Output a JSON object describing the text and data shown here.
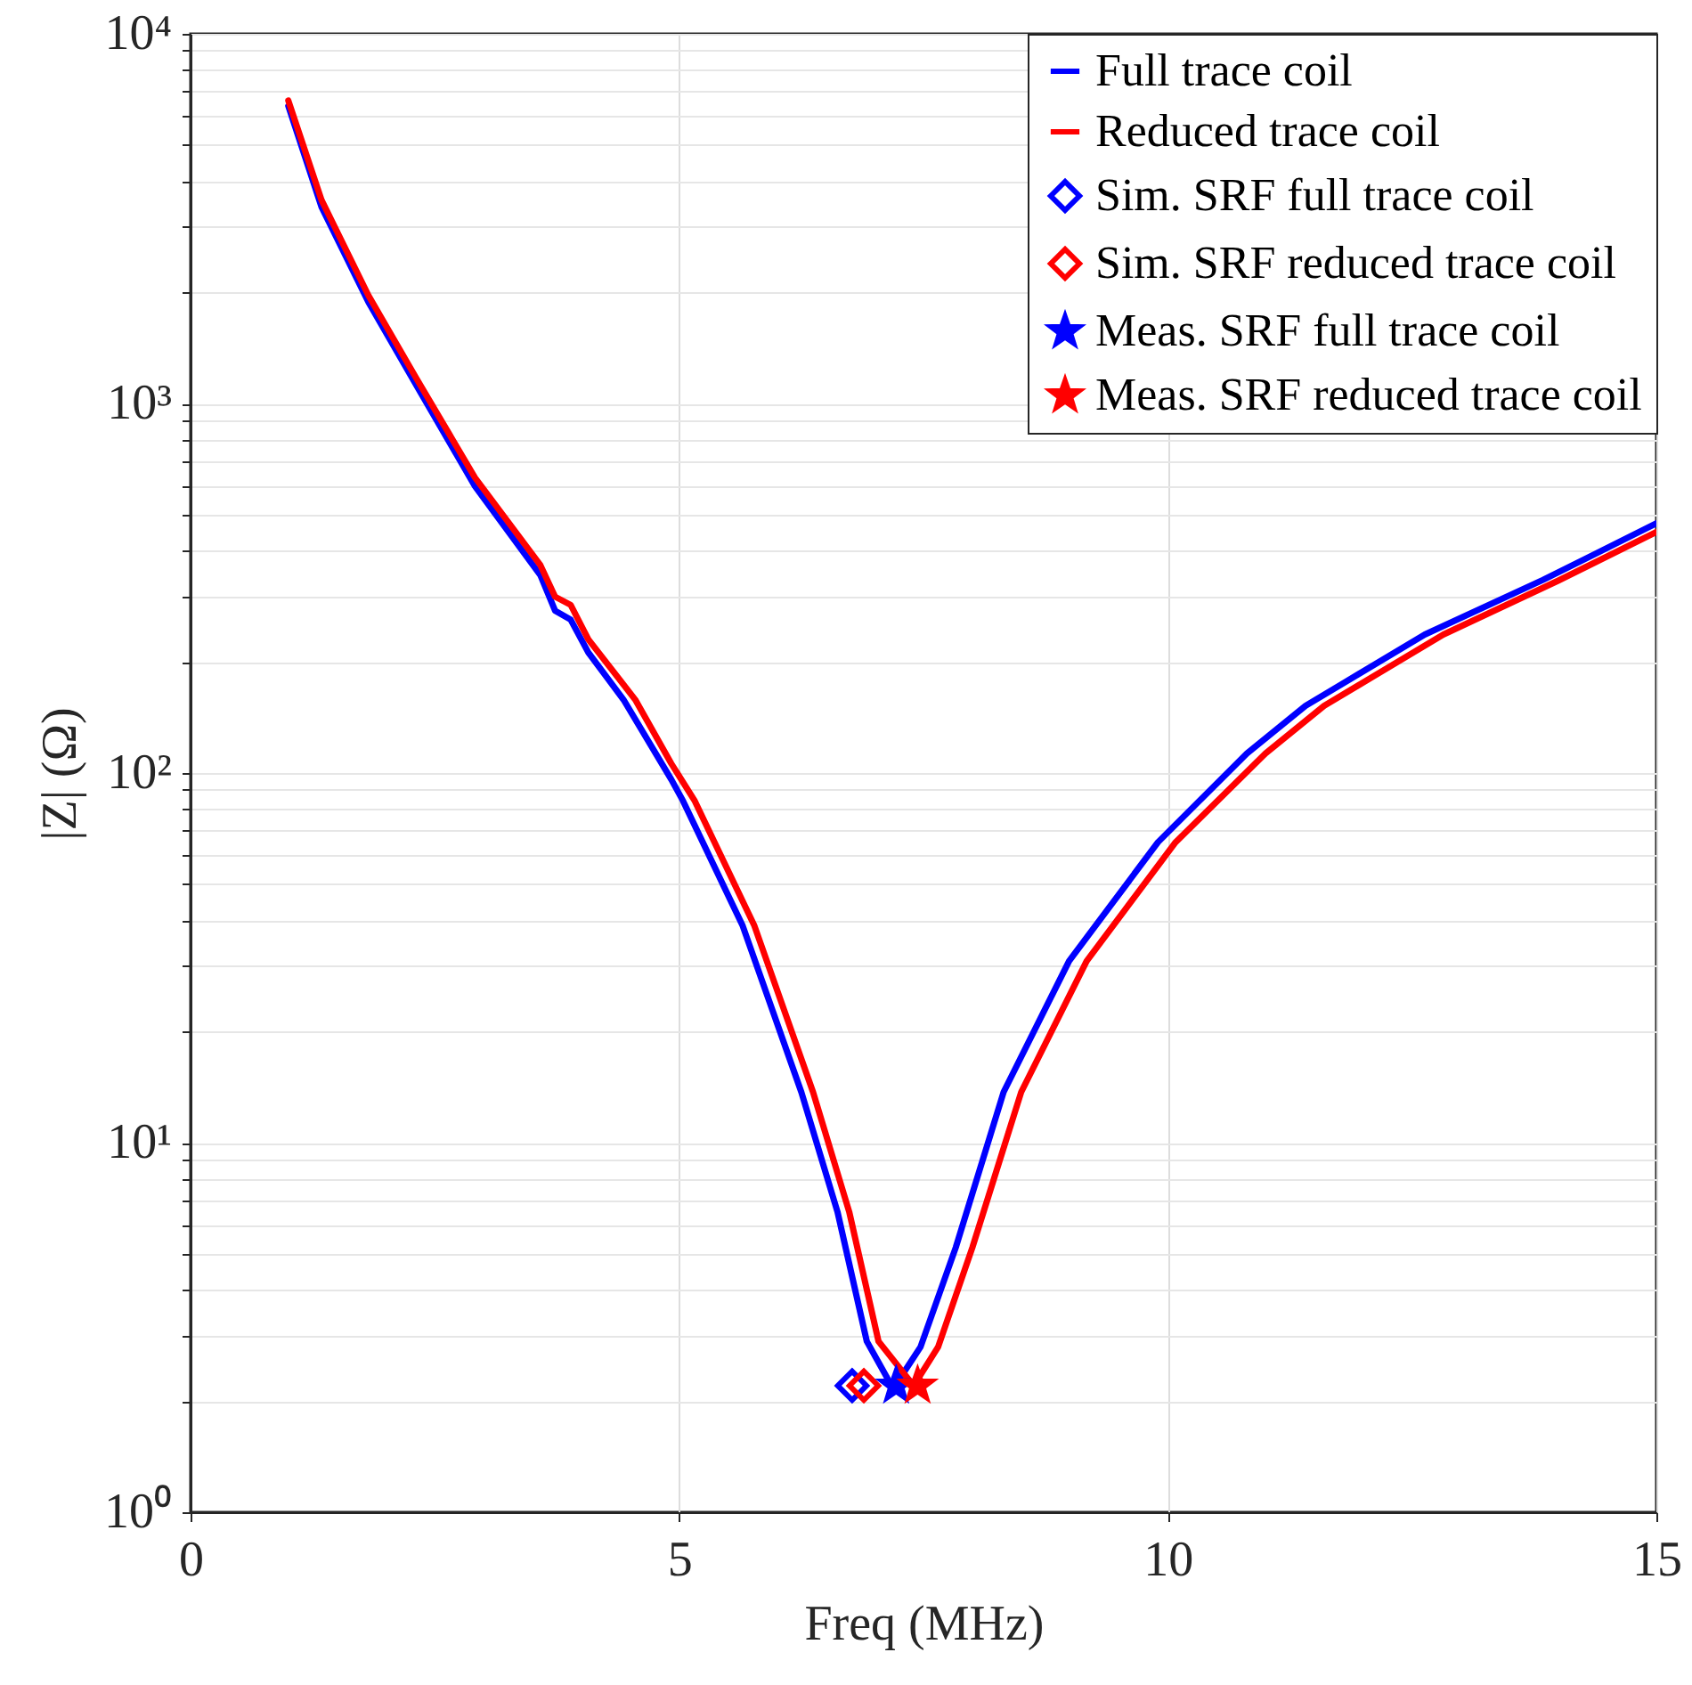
{
  "chart_data": {
    "type": "line",
    "xlabel": "Freq (MHz)",
    "ylabel": "|Z| (Ω)",
    "log": "y",
    "grid": true,
    "legend": "top right",
    "xlim": [
      0,
      15
    ],
    "xticks": [
      0,
      5,
      10,
      15
    ],
    "ylim": [
      1,
      10000
    ],
    "yticks": [
      {
        "value": 1,
        "label": "10⁰"
      },
      {
        "value": 2,
        "label": null
      },
      {
        "value": 3,
        "label": null
      },
      {
        "value": 4,
        "label": null
      },
      {
        "value": 5,
        "label": null
      },
      {
        "value": 6,
        "label": null
      },
      {
        "value": 7,
        "label": null
      },
      {
        "value": 8,
        "label": null
      },
      {
        "value": 9,
        "label": null
      },
      {
        "value": 10,
        "label": "10¹"
      },
      {
        "value": 20,
        "label": null
      },
      {
        "value": 30,
        "label": null
      },
      {
        "value": 40,
        "label": null
      },
      {
        "value": 50,
        "label": null
      },
      {
        "value": 60,
        "label": null
      },
      {
        "value": 70,
        "label": null
      },
      {
        "value": 80,
        "label": null
      },
      {
        "value": 90,
        "label": null
      },
      {
        "value": 100,
        "label": "10²"
      },
      {
        "value": 200,
        "label": null
      },
      {
        "value": 300,
        "label": null
      },
      {
        "value": 400,
        "label": null
      },
      {
        "value": 500,
        "label": null
      },
      {
        "value": 600,
        "label": null
      },
      {
        "value": 700,
        "label": null
      },
      {
        "value": 800,
        "label": null
      },
      {
        "value": 900,
        "label": null
      },
      {
        "value": 1000,
        "label": "10³"
      },
      {
        "value": 2000,
        "label": null
      },
      {
        "value": 3000,
        "label": null
      },
      {
        "value": 4000,
        "label": null
      },
      {
        "value": 5000,
        "label": null
      },
      {
        "value": 6000,
        "label": null
      },
      {
        "value": 7000,
        "label": null
      },
      {
        "value": 8000,
        "label": null
      },
      {
        "value": 9000,
        "label": null
      },
      {
        "value": 10000,
        "label": "10⁴"
      }
    ],
    "series": [
      {
        "name": "Full trace coil",
        "color": "#0000ff",
        "marker": "none",
        "line_style": "solid",
        "x": [
          1.0,
          1.34,
          1.82,
          2.31,
          2.91,
          3.58,
          3.73,
          3.89,
          4.07,
          4.43,
          4.92,
          5.04,
          5.65,
          6.25,
          6.62,
          6.92,
          7.19,
          7.47,
          7.83,
          8.32,
          8.99,
          9.9,
          10.81,
          11.41,
          12.63,
          13.84,
          15
        ],
        "values": [
          6380,
          3400,
          1880,
          1120,
          597,
          343,
          275,
          260,
          212,
          158,
          96,
          84,
          38.6,
          13.7,
          6.5,
          2.9,
          2.16,
          2.8,
          5.2,
          13.7,
          31,
          65,
          113,
          152,
          237,
          333,
          474
        ]
      },
      {
        "name": "Reduced trace coil",
        "color": "#ff0000",
        "marker": "none",
        "line_style": "solid",
        "x": [
          1.0,
          1.34,
          1.82,
          2.31,
          2.91,
          3.58,
          3.73,
          3.89,
          4.07,
          4.55,
          4.92,
          5.16,
          5.77,
          6.37,
          6.74,
          7.04,
          7.4,
          7.65,
          8.0,
          8.5,
          9.17,
          10.08,
          11.0,
          11.6,
          12.82,
          14.0,
          15
        ],
        "values": [
          6600,
          3550,
          1960,
          1170,
          630,
          365,
          300,
          285,
          230,
          158,
          106,
          84,
          38.6,
          13.7,
          6.5,
          2.9,
          2.2,
          2.8,
          5.2,
          13.7,
          31,
          65,
          113,
          152,
          237,
          332,
          449
        ]
      },
      {
        "name": "Sim. SRF full trace coil",
        "type": "scatter",
        "color": "#0000ff",
        "marker": "diamond",
        "x": [
          6.77
        ],
        "values": [
          2.2
        ]
      },
      {
        "name": "Sim. SRF reduced trace coil",
        "type": "scatter",
        "color": "#ff0000",
        "marker": "diamond",
        "x": [
          6.89
        ],
        "values": [
          2.2
        ]
      },
      {
        "name": "Meas. SRF full trace coil",
        "type": "scatter",
        "color": "#0000ff",
        "marker": "star",
        "x": [
          7.22
        ],
        "values": [
          2.2
        ]
      },
      {
        "name": "Meas. SRF reduced trace coil",
        "type": "scatter",
        "color": "#ff0000",
        "marker": "star",
        "x": [
          7.44
        ],
        "values": [
          2.2
        ]
      }
    ]
  }
}
